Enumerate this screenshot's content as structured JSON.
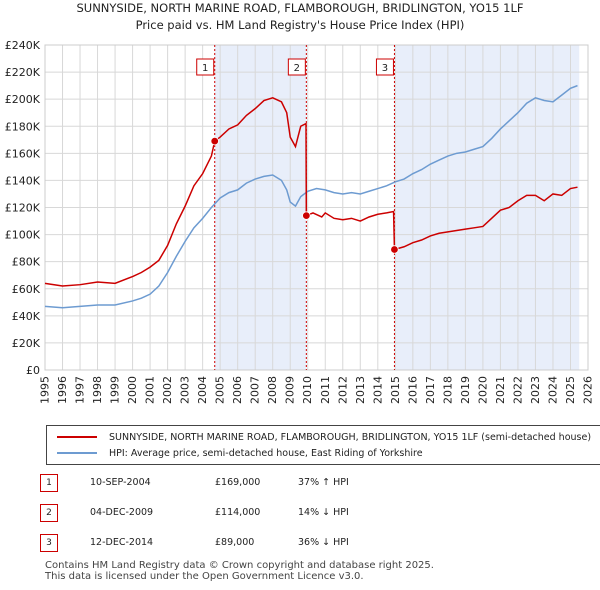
{
  "chart_data": {
    "type": "line",
    "title": "SUNNYSIDE, NORTH MARINE ROAD, FLAMBOROUGH, BRIDLINGTON, YO15 1LF",
    "subtitle": "Price paid vs. HM Land Registry's House Price Index (HPI)",
    "xlabel": "",
    "ylabel": "",
    "xlim": [
      1995,
      2026
    ],
    "ylim": [
      0,
      240000
    ],
    "y_ticks": [
      0,
      20000,
      40000,
      60000,
      80000,
      100000,
      120000,
      140000,
      160000,
      180000,
      200000,
      220000,
      240000
    ],
    "y_tick_labels": [
      "£0",
      "£20K",
      "£40K",
      "£60K",
      "£80K",
      "£100K",
      "£120K",
      "£140K",
      "£160K",
      "£180K",
      "£200K",
      "£220K",
      "£240K"
    ],
    "x_ticks": [
      1995,
      1996,
      1997,
      1998,
      1999,
      2000,
      2001,
      2002,
      2003,
      2004,
      2005,
      2006,
      2007,
      2008,
      2009,
      2010,
      2011,
      2012,
      2013,
      2014,
      2015,
      2016,
      2017,
      2018,
      2019,
      2020,
      2021,
      2022,
      2023,
      2024,
      2025,
      2026
    ],
    "x_tick_labels": [
      "1995",
      "1996",
      "1997",
      "1998",
      "1999",
      "2000",
      "2001",
      "2002",
      "2003",
      "2004",
      "2005",
      "2006",
      "2007",
      "2008",
      "2009",
      "2010",
      "2011",
      "2012",
      "2013",
      "2014",
      "2015",
      "2016",
      "2017",
      "2018",
      "2019",
      "2020",
      "2021",
      "2022",
      "2023",
      "2024",
      "2025",
      "2026"
    ],
    "grid": true,
    "shaded_periods": [
      [
        2004.69,
        2009.92
      ],
      [
        2014.95,
        2025.5
      ]
    ],
    "series": [
      {
        "name": "SUNNYSIDE, NORTH MARINE ROAD, FLAMBOROUGH, BRIDLINGTON, YO15 1LF (semi-detached house)",
        "color": "#cc0000",
        "x": [
          1995,
          1996,
          1997,
          1998,
          1999,
          2000,
          2000.5,
          2001,
          2001.5,
          2002,
          2002.5,
          2003,
          2003.5,
          2004,
          2004.5,
          2004.69,
          2005,
          2005.5,
          2006,
          2006.5,
          2007,
          2007.5,
          2008,
          2008.5,
          2008.8,
          2009,
          2009.3,
          2009.6,
          2009.9,
          2009.92,
          2010.3,
          2010.8,
          2011,
          2011.5,
          2012,
          2012.5,
          2013,
          2013.5,
          2014,
          2014.5,
          2014.9,
          2014.95,
          2015.5,
          2016,
          2016.5,
          2017,
          2017.5,
          2018,
          2018.5,
          2019,
          2019.5,
          2020,
          2020.5,
          2021,
          2021.5,
          2022,
          2022.5,
          2023,
          2023.5,
          2024,
          2024.5,
          2025,
          2025.4
        ],
        "y": [
          64000,
          62000,
          63000,
          65000,
          64000,
          69000,
          72000,
          76000,
          81000,
          92000,
          108000,
          121000,
          136000,
          145000,
          158000,
          169000,
          172000,
          178000,
          181000,
          188000,
          193000,
          199000,
          201000,
          198000,
          190000,
          172000,
          165000,
          180000,
          182000,
          114000,
          116000,
          113000,
          116000,
          112000,
          111000,
          112000,
          110000,
          113000,
          115000,
          116000,
          117000,
          89000,
          91000,
          94000,
          96000,
          99000,
          101000,
          102000,
          103000,
          104000,
          105000,
          106000,
          112000,
          118000,
          120000,
          125000,
          129000,
          129000,
          125000,
          130000,
          129000,
          134000,
          135000
        ]
      },
      {
        "name": "HPI: Average price, semi-detached house, East Riding of Yorkshire",
        "color": "#6d9bd1",
        "x": [
          1995,
          1996,
          1997,
          1998,
          1999,
          2000,
          2000.5,
          2001,
          2001.5,
          2002,
          2002.5,
          2003,
          2003.5,
          2004,
          2004.5,
          2005,
          2005.5,
          2006,
          2006.5,
          2007,
          2007.5,
          2008,
          2008.5,
          2008.8,
          2009,
          2009.3,
          2009.6,
          2010,
          2010.5,
          2011,
          2011.5,
          2012,
          2012.5,
          2013,
          2013.5,
          2014,
          2014.5,
          2015,
          2015.5,
          2016,
          2016.5,
          2017,
          2017.5,
          2018,
          2018.5,
          2019,
          2019.5,
          2020,
          2020.5,
          2021,
          2021.5,
          2022,
          2022.5,
          2023,
          2023.5,
          2024,
          2024.5,
          2025,
          2025.4
        ],
        "y": [
          47000,
          46000,
          47000,
          48000,
          48000,
          51000,
          53000,
          56000,
          62000,
          72000,
          84000,
          95000,
          105000,
          112000,
          120000,
          127000,
          131000,
          133000,
          138000,
          141000,
          143000,
          144000,
          140000,
          133000,
          124000,
          121000,
          128000,
          132000,
          134000,
          133000,
          131000,
          130000,
          131000,
          130000,
          132000,
          134000,
          136000,
          139000,
          141000,
          145000,
          148000,
          152000,
          155000,
          158000,
          160000,
          161000,
          163000,
          165000,
          171000,
          178000,
          184000,
          190000,
          197000,
          201000,
          199000,
          198000,
          203000,
          208000,
          210000
        ]
      }
    ],
    "sales": [
      {
        "label": "1",
        "x": 2004.69,
        "price": 169000
      },
      {
        "label": "2",
        "x": 2009.92,
        "price": 114000
      },
      {
        "label": "3",
        "x": 2014.95,
        "price": 89000
      }
    ]
  },
  "legend": {
    "red_label": "SUNNYSIDE, NORTH MARINE ROAD, FLAMBOROUGH, BRIDLINGTON, YO15 1LF (semi-detached house)",
    "blue_label": "HPI: Average price, semi-detached house, East Riding of Yorkshire",
    "red_color": "#cc0000",
    "blue_color": "#6d9bd1"
  },
  "table": {
    "rows": [
      {
        "num": "1",
        "date": "10-SEP-2004",
        "price": "£169,000",
        "hpi": "37% ↑ HPI"
      },
      {
        "num": "2",
        "date": "04-DEC-2009",
        "price": "£114,000",
        "hpi": "14% ↓ HPI"
      },
      {
        "num": "3",
        "date": "12-DEC-2014",
        "price": "£89,000",
        "hpi": "36% ↓ HPI"
      }
    ]
  },
  "footer": {
    "line1": "Contains HM Land Registry data © Crown copyright and database right 2025.",
    "line2": "This data is licensed under the Open Government Licence v3.0."
  }
}
